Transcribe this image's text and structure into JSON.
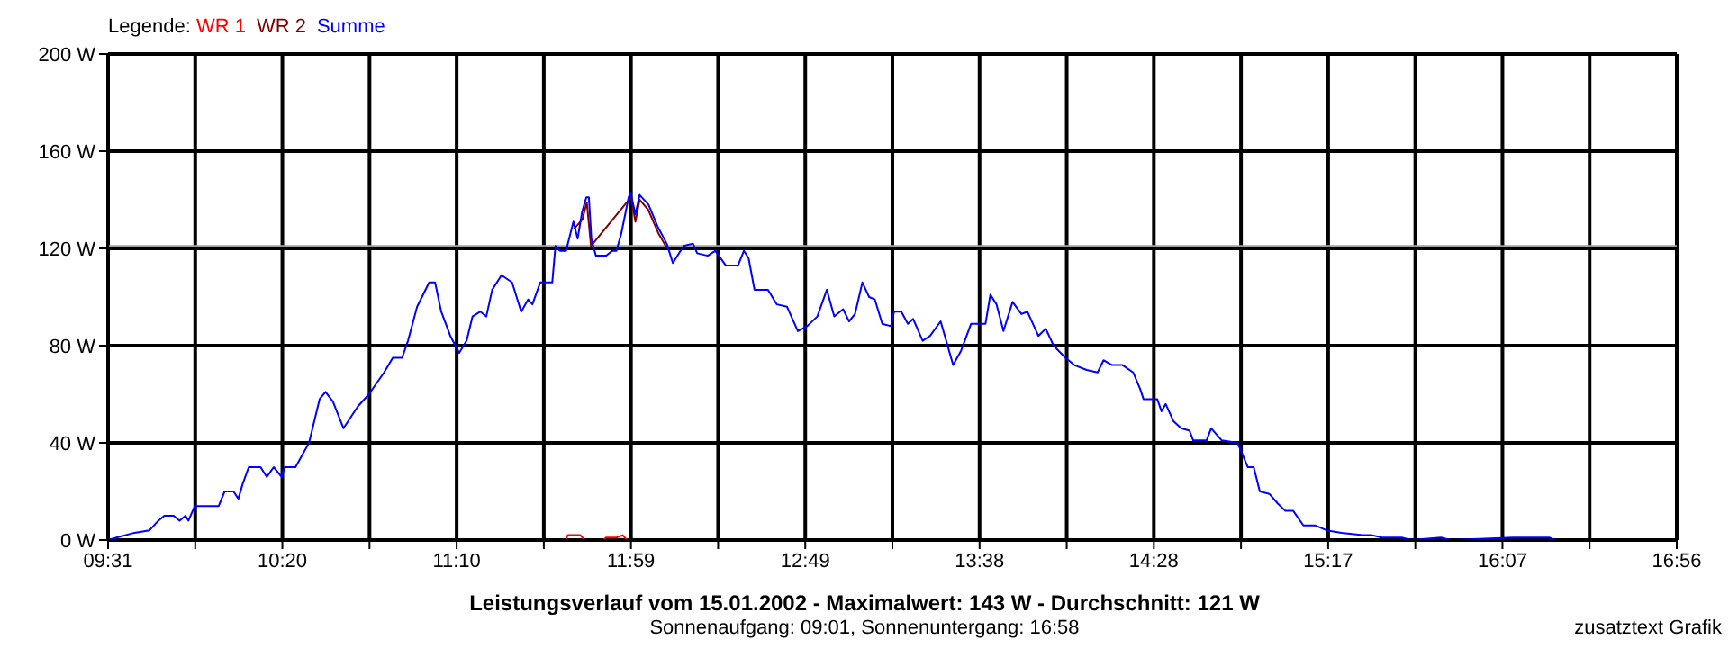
{
  "chart_data": {
    "type": "line",
    "title": "Leistungsverlauf vom 15.01.2002 - Maximalwert: 143 W - Durchschnitt: 121 W",
    "subtitle": "Sonnenaufgang: 09:01, Sonnenuntergang: 16:58",
    "legend_title": "Legende:",
    "legend": "top left",
    "grid": true,
    "marker": "none",
    "line_style": "solid",
    "annotations": [
      "zusatztext Grafik"
    ],
    "xlim": [
      9.517,
      16.933
    ],
    "xticks": [
      {
        "value": 9.517,
        "label": "09:31"
      },
      {
        "value": 9.929,
        "label": null
      },
      {
        "value": 10.341,
        "label": "10:20"
      },
      {
        "value": 10.753,
        "label": null
      },
      {
        "value": 11.165,
        "label": "11:10"
      },
      {
        "value": 11.577,
        "label": null
      },
      {
        "value": 11.989,
        "label": "11:59"
      },
      {
        "value": 12.401,
        "label": null
      },
      {
        "value": 12.813,
        "label": "12:49"
      },
      {
        "value": 13.225,
        "label": null
      },
      {
        "value": 13.637,
        "label": "13:38"
      },
      {
        "value": 14.049,
        "label": null
      },
      {
        "value": 14.461,
        "label": "14:28"
      },
      {
        "value": 14.873,
        "label": null
      },
      {
        "value": 15.285,
        "label": "15:17"
      },
      {
        "value": 15.697,
        "label": null
      },
      {
        "value": 16.109,
        "label": "16:07"
      },
      {
        "value": 16.521,
        "label": null
      },
      {
        "value": 16.933,
        "label": "16:56"
      }
    ],
    "ylim": [
      0,
      200
    ],
    "yticks": [
      {
        "value": 0,
        "label": "0 W"
      },
      {
        "value": 40,
        "label": "40 W"
      },
      {
        "value": 80,
        "label": "80 W"
      },
      {
        "value": 120,
        "label": "120 W"
      },
      {
        "value": 160,
        "label": "160 W"
      },
      {
        "value": 200,
        "label": "200 W"
      }
    ],
    "ref_lines": [
      {
        "axis": "y",
        "value": 121,
        "color": "#a0a0a0"
      }
    ],
    "series": [
      {
        "name": "WR 1",
        "color": "#ff0000",
        "x": [
          11.68,
          11.69,
          11.75,
          11.77,
          11.86,
          11.87,
          11.92,
          11.95,
          11.97
        ],
        "values": [
          0,
          2,
          2,
          0,
          0,
          1,
          1,
          2,
          0
        ]
      },
      {
        "name": "WR 2",
        "color": "#800000",
        "x": [
          11.72,
          11.76,
          11.78,
          11.8,
          11.97,
          11.99,
          12.01,
          12.03,
          12.07,
          12.12,
          12.16
        ],
        "values": [
          128,
          132,
          139,
          121,
          139,
          141,
          131,
          140,
          136,
          126,
          120
        ]
      },
      {
        "name": "Summe",
        "color": "#0000ff",
        "x": [
          9.517,
          9.557,
          9.642,
          9.713,
          9.755,
          9.783,
          9.827,
          9.855,
          9.883,
          9.897,
          9.927,
          10.04,
          10.068,
          10.11,
          10.133,
          10.153,
          10.182,
          10.238,
          10.267,
          10.3,
          10.338,
          10.352,
          10.403,
          10.467,
          10.517,
          10.545,
          10.58,
          10.63,
          10.698,
          10.75,
          10.822,
          10.863,
          10.907,
          10.935,
          10.978,
          11.035,
          11.063,
          11.092,
          11.135,
          11.177,
          11.212,
          11.24,
          11.277,
          11.305,
          11.333,
          11.377,
          11.427,
          11.47,
          11.503,
          11.523,
          11.56,
          11.588,
          11.617,
          11.632,
          11.653,
          11.682,
          11.717,
          11.737,
          11.758,
          11.778,
          11.79,
          11.802,
          11.823,
          11.872,
          11.9,
          11.92,
          11.943,
          11.978,
          11.987,
          12.01,
          12.03,
          12.072,
          12.115,
          12.158,
          12.187,
          12.238,
          12.282,
          12.302,
          12.352,
          12.388,
          12.437,
          12.495,
          12.523,
          12.545,
          12.573,
          12.637,
          12.678,
          12.727,
          12.778,
          12.822,
          12.87,
          12.915,
          12.95,
          12.992,
          13.02,
          13.048,
          13.083,
          13.115,
          13.142,
          13.177,
          13.218,
          13.233,
          13.267,
          13.298,
          13.323,
          13.368,
          13.403,
          13.453,
          13.512,
          13.55,
          13.597,
          13.665,
          13.688,
          13.717,
          13.75,
          13.793,
          13.835,
          13.863,
          13.915,
          13.95,
          13.987,
          14.043,
          14.085,
          14.143,
          14.195,
          14.223,
          14.263,
          14.313,
          14.363,
          14.397,
          14.412,
          14.477,
          14.497,
          14.517,
          14.553,
          14.59,
          14.63,
          14.647,
          14.71,
          14.732,
          14.782,
          14.857,
          14.905,
          14.933,
          14.962,
          15.007,
          15.047,
          15.083,
          15.12,
          15.168,
          15.225,
          15.278,
          15.348,
          15.448,
          15.492,
          15.54,
          15.633,
          15.677,
          15.818,
          15.863,
          16.16,
          16.33,
          16.358,
          16.933
        ],
        "values": [
          0,
          1,
          3,
          4,
          8,
          10,
          10,
          8,
          10,
          8,
          14,
          14,
          20,
          20,
          17,
          23,
          30,
          30,
          26,
          30,
          26,
          30,
          30,
          40,
          58,
          61,
          57,
          46,
          55,
          60,
          69,
          75,
          75,
          82,
          96,
          106,
          106,
          94,
          84,
          77,
          82,
          92,
          94,
          92,
          103,
          109,
          106,
          94,
          99,
          97,
          106,
          106,
          106,
          121,
          119,
          119,
          131,
          124,
          135,
          141,
          141,
          124,
          117,
          117,
          119,
          119,
          126,
          141,
          143,
          134,
          142,
          138,
          129,
          122,
          114,
          121,
          122,
          118,
          117,
          119,
          113,
          113,
          119,
          116,
          103,
          103,
          97,
          96,
          86,
          88,
          92,
          103,
          92,
          95,
          90,
          93,
          106,
          100,
          99,
          89,
          88,
          94,
          94,
          89,
          91,
          82,
          84,
          90,
          72,
          78,
          89,
          89,
          101,
          97,
          86,
          98,
          93,
          94,
          84,
          87,
          80,
          75,
          72,
          70,
          69,
          74,
          72,
          72,
          69,
          62,
          58,
          58,
          53,
          56,
          49,
          46,
          45,
          41,
          41,
          46,
          41,
          40,
          30,
          30,
          20,
          19,
          15,
          12,
          12,
          6,
          6,
          4,
          3,
          2,
          2,
          1,
          1,
          0,
          1,
          0,
          1,
          1,
          0,
          0
        ]
      }
    ]
  }
}
